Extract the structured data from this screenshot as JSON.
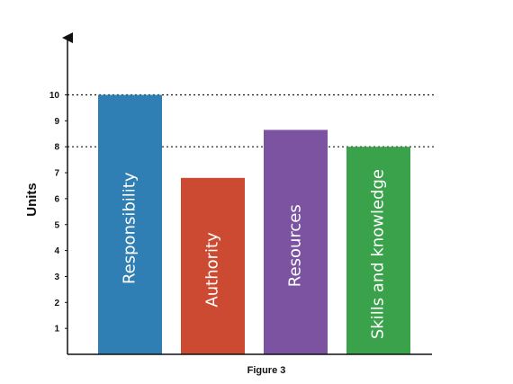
{
  "chart_data": {
    "type": "bar",
    "categories": [
      "Responsibility",
      "Authority",
      "Resources",
      "Skills and knowledge"
    ],
    "values": [
      10,
      6.8,
      8.65,
      8
    ],
    "colors": [
      "#2f7fb5",
      "#cc4a31",
      "#7b53a1",
      "#3aa24a"
    ],
    "ylabel": "Units",
    "xlabel": "",
    "caption": "Figure 3",
    "ylim": [
      0,
      11
    ],
    "yticks": [
      1,
      2,
      3,
      4,
      5,
      6,
      7,
      8,
      9,
      10
    ],
    "reference_lines": [
      8,
      10
    ],
    "label_orientation": "vertical",
    "grid": false
  }
}
